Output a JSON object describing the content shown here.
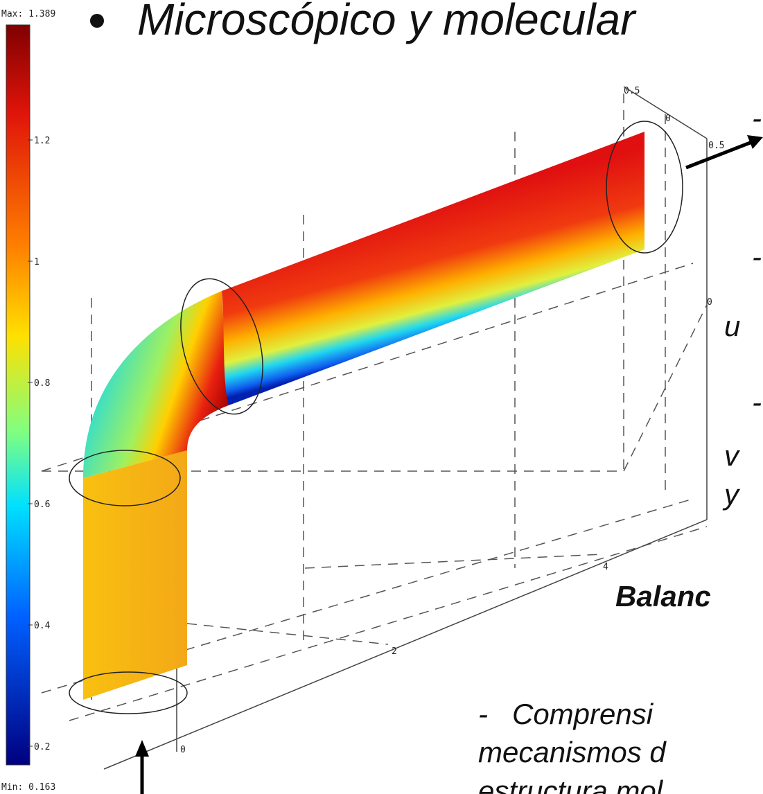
{
  "title": "Microscópico y molecular",
  "colorbar": {
    "max_label": "Max: 1.389",
    "min_label": "Min: 0.163",
    "ticks": [
      "1.2",
      "1",
      "0.8",
      "0.6",
      "0.4",
      "0.2"
    ]
  },
  "axis_labels": [
    "0.5",
    "0",
    "0.5",
    "0",
    "2",
    "4",
    "0"
  ],
  "right_text": {
    "dash_1": "-",
    "dash_2": "-",
    "line_2": "u",
    "dash_3": "-",
    "line_3a": "v",
    "line_3b": "y",
    "heading": "Balanc",
    "para_1": "-   Comprensi",
    "para_2": "mecanismos d",
    "para_3": "estructura mol"
  }
}
